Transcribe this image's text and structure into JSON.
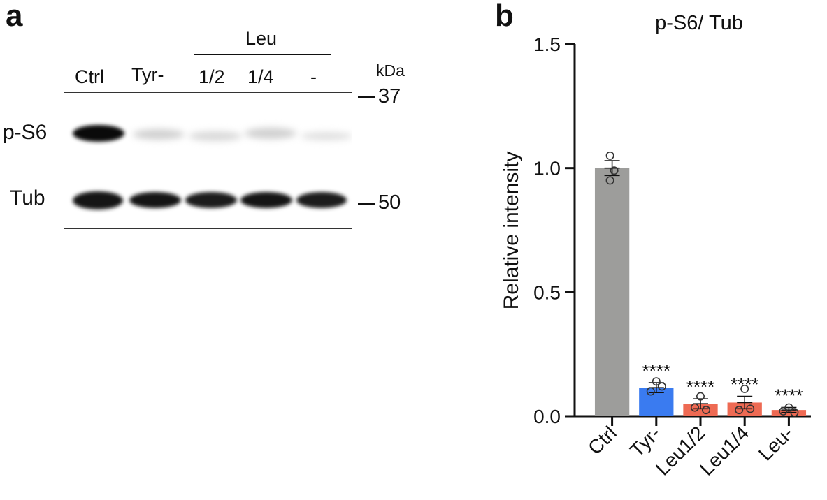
{
  "panel_a": {
    "letter": "a",
    "group_label": "Leu",
    "lanes": [
      "Ctrl",
      "Tyr-",
      "1/2",
      "1/4",
      "-"
    ],
    "unit_label": "kDa",
    "blots": [
      {
        "label": "p-S6",
        "marker": "37",
        "band_intensity": [
          1.0,
          0.12,
          0.08,
          0.12,
          0.05
        ]
      },
      {
        "label": "Tub",
        "marker": "50",
        "band_intensity": [
          0.95,
          0.95,
          0.92,
          0.95,
          0.92
        ]
      }
    ]
  },
  "panel_b": {
    "letter": "b"
  },
  "colors": {
    "gray": "#9d9d9b",
    "blue": "#3a7bf0",
    "red": "#ee6a53"
  },
  "chart_data": {
    "type": "bar",
    "title": "p-S6/ Tub",
    "xlabel": "",
    "ylabel": "Relative intensity",
    "categories": [
      "Ctrl",
      "Tyr-",
      "Leu1/2",
      "Leu1/4",
      "Leu-"
    ],
    "values": [
      1.0,
      0.115,
      0.05,
      0.055,
      0.025
    ],
    "sem": [
      0.03,
      0.02,
      0.02,
      0.025,
      0.01
    ],
    "points": [
      [
        1.05,
        0.99,
        0.95
      ],
      [
        0.14,
        0.1,
        0.12
      ],
      [
        0.08,
        0.035,
        0.025
      ],
      [
        0.11,
        0.025,
        0.03
      ],
      [
        0.035,
        0.02,
        0.015
      ]
    ],
    "bar_colors": [
      "#9d9d9b",
      "#3a7bf0",
      "#ee6a53",
      "#ee6a53",
      "#ee6a53"
    ],
    "significance": [
      "",
      "****",
      "****",
      "****",
      "****"
    ],
    "ylim": [
      0,
      1.5
    ],
    "yticks": [
      "0.0",
      "0.5",
      "1.0",
      "1.5"
    ],
    "grid": false
  }
}
